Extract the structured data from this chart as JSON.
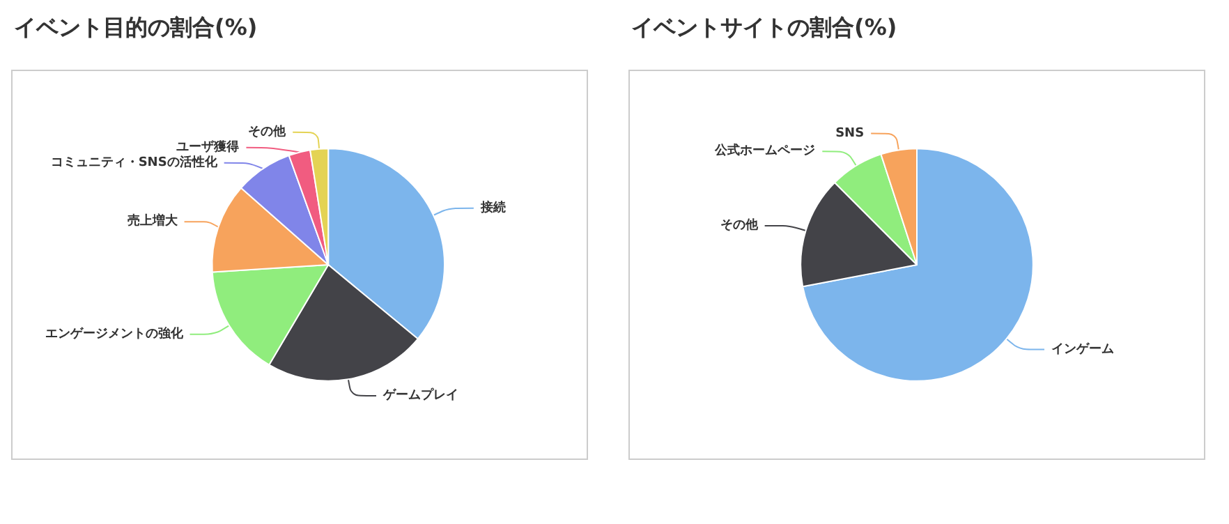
{
  "chart_data": [
    {
      "type": "pie",
      "title": "イベント目的の割合(%)",
      "categories": [
        "接続",
        "ゲームプレイ",
        "エンゲージメントの強化",
        "売上増大",
        "コミュニティ・SNSの活性化",
        "ユーザ獲得",
        "その他"
      ],
      "values": [
        36,
        22.5,
        15.5,
        12.5,
        8,
        3,
        2.5
      ],
      "colors": [
        "#7cb5ec",
        "#434348",
        "#90ed7d",
        "#f7a35c",
        "#8085e9",
        "#f15c80",
        "#e4d354"
      ]
    },
    {
      "type": "pie",
      "title": "イベントサイトの割合(%)",
      "categories": [
        "インゲーム",
        "その他",
        "公式ホームページ",
        "SNS"
      ],
      "values": [
        72,
        15.5,
        7.5,
        5
      ],
      "colors": [
        "#7cb5ec",
        "#434348",
        "#90ed7d",
        "#f7a35c"
      ]
    }
  ]
}
